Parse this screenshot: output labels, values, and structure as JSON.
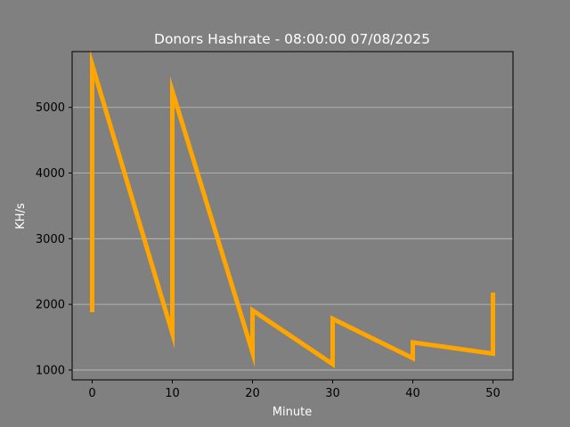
{
  "chart_data": {
    "type": "line",
    "title": "Donors Hashrate - 08:00:00 07/08/2025",
    "xlabel": "Minute",
    "ylabel": "KH/s",
    "xlim": [
      -2.5,
      52.5
    ],
    "ylim": [
      850,
      5850
    ],
    "xticks": [
      0,
      10,
      20,
      30,
      40,
      50
    ],
    "yticks": [
      1000,
      2000,
      3000,
      4000,
      5000
    ],
    "grid": "horizontal",
    "colors": {
      "background": "#808080",
      "plot_area": "#808080",
      "line": "#ffa500",
      "grid": "#c0c0c0",
      "spines": "#000000"
    },
    "series": [
      {
        "x": [
          0,
          0,
          10,
          10,
          20,
          20,
          30,
          30,
          40,
          40,
          50,
          50
        ],
        "y": [
          1880,
          5650,
          1560,
          5250,
          1270,
          1910,
          1090,
          1780,
          1180,
          1420,
          1250,
          2180
        ]
      }
    ]
  }
}
